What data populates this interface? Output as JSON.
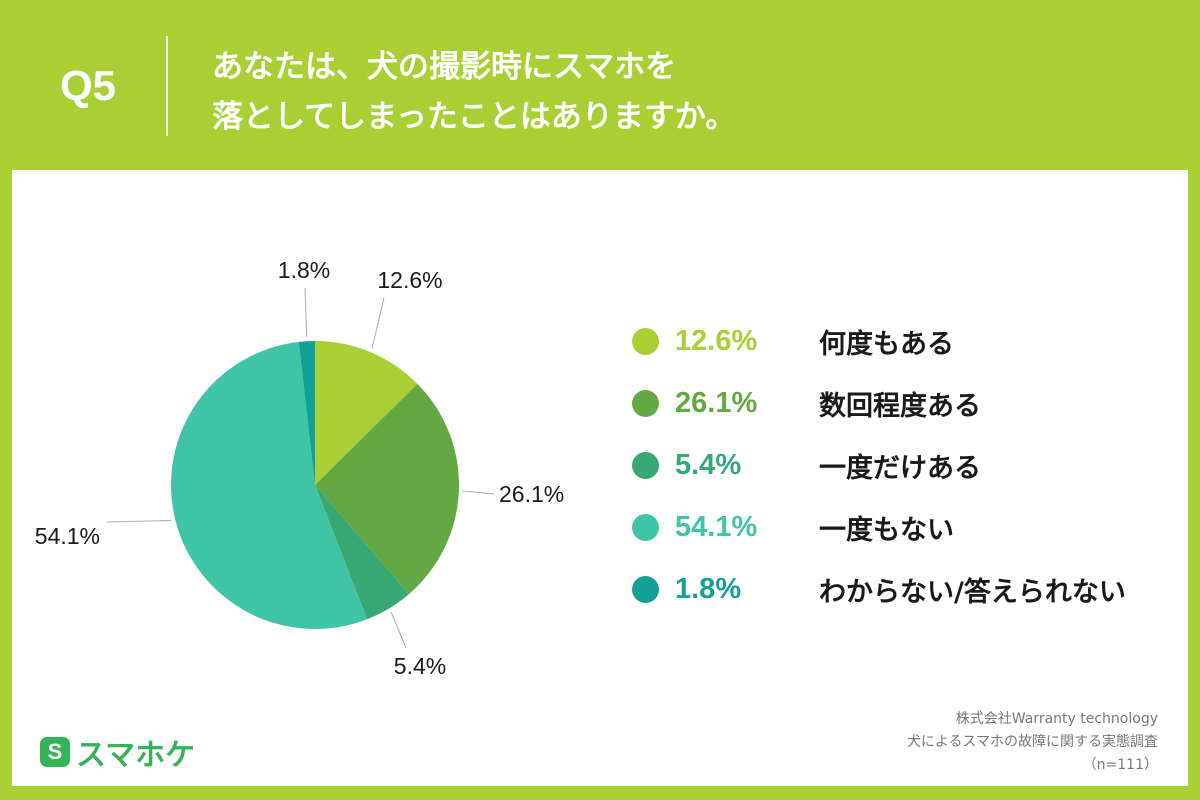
{
  "header": {
    "q_number": "Q5",
    "question_line1": "あなたは、犬の撮影時にスマホを",
    "question_line2": "落としてしまったことはありますか。"
  },
  "chart_data": {
    "type": "pie",
    "categories": [
      "何度もある",
      "数回程度ある",
      "一度だけある",
      "一度もない",
      "わからない/答えられない"
    ],
    "values": [
      12.6,
      26.1,
      5.4,
      54.1,
      1.8
    ],
    "value_labels": [
      "12.6%",
      "26.1%",
      "5.4%",
      "54.1%",
      "1.8%"
    ],
    "colors": [
      "#a9cf35",
      "#64a844",
      "#37a874",
      "#40c4a8",
      "#14a096"
    ],
    "start": "12 o'clock",
    "direction": "clockwise",
    "legend_placement": "right"
  },
  "legend": {
    "items": [
      {
        "pct": "12.6%",
        "label": "何度もある",
        "color": "#a9cf35"
      },
      {
        "pct": "26.1%",
        "label": "数回程度ある",
        "color": "#64a844"
      },
      {
        "pct": "5.4%",
        "label": "一度だけある",
        "color": "#37a874"
      },
      {
        "pct": "54.1%",
        "label": "一度もない",
        "color": "#40c4a8"
      },
      {
        "pct": "1.8%",
        "label": "わからない/答えられない",
        "color": "#14a096"
      }
    ]
  },
  "footer": {
    "logo_mark": "S",
    "logo_text": "スマホケ",
    "source_line1": "株式会社Warranty technology",
    "source_line2": "犬によるスマホの故障に関する実態調査",
    "source_line3": "（n=111）"
  }
}
